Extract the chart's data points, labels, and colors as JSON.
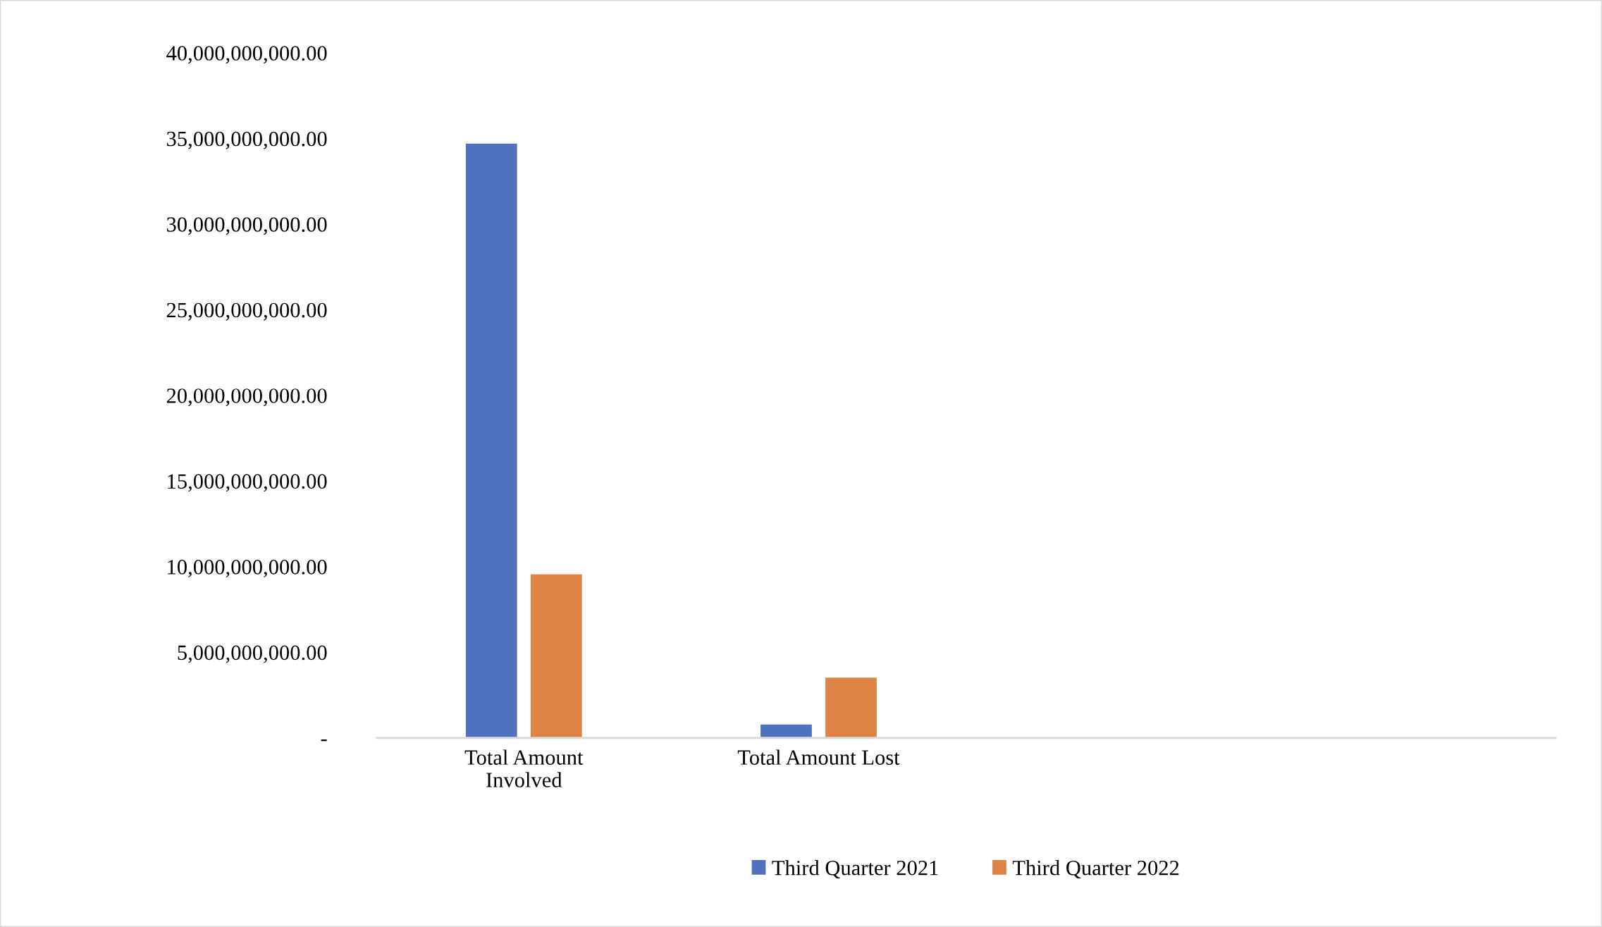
{
  "chart_data": {
    "type": "bar",
    "categories": [
      "Total Amount\nInvolved",
      "Total Amount Lost",
      null,
      null
    ],
    "series": [
      {
        "name": "Third Quarter 2021",
        "color": "#4f71be",
        "values": [
          34700000000,
          780000000,
          null,
          null
        ]
      },
      {
        "name": "Third Quarter 2022",
        "color": "#de8344",
        "values": [
          9550000000,
          3520000000,
          null,
          null
        ]
      }
    ],
    "ylim": [
      0,
      40000000000
    ],
    "yticks": [
      {
        "value": 0,
        "label": "-"
      },
      {
        "value": 5000000000,
        "label": "5,000,000,000.00"
      },
      {
        "value": 10000000000,
        "label": "10,000,000,000.00"
      },
      {
        "value": 15000000000,
        "label": "15,000,000,000.00"
      },
      {
        "value": 20000000000,
        "label": "20,000,000,000.00"
      },
      {
        "value": 25000000000,
        "label": "25,000,000,000.00"
      },
      {
        "value": 30000000000,
        "label": "30,000,000,000.00"
      },
      {
        "value": 35000000000,
        "label": "35,000,000,000.00"
      },
      {
        "value": 40000000000,
        "label": "40,000,000,000.00"
      }
    ],
    "grid": false,
    "legend": "bottom"
  }
}
